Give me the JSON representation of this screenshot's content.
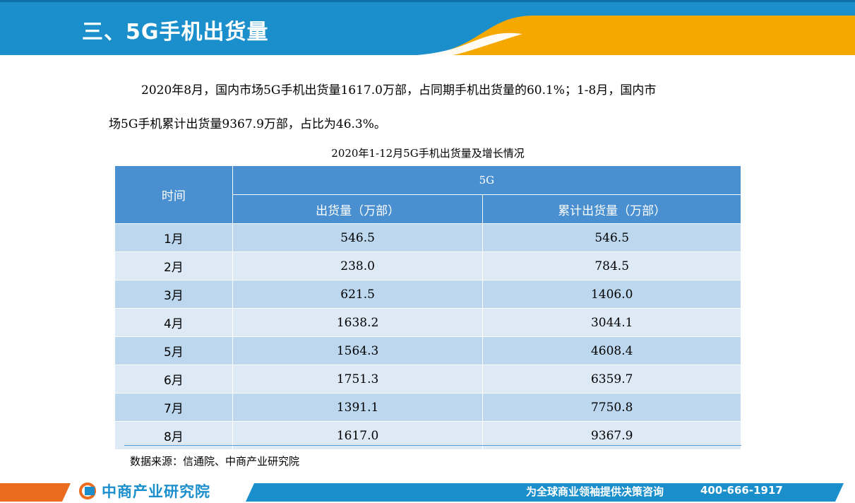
{
  "header": {
    "title": "三、5G手机出货量"
  },
  "paragraph": {
    "line1": "2020年8月，国内市场5G手机出货量1617.0万部，占同期手机出货量的60.1%；1-8月，国内市",
    "line2": "场5G手机累计出货量9367.9万部，占比为46.3%。"
  },
  "table": {
    "caption": "2020年1-12月5G手机出货量及增长情况",
    "header_time": "时间",
    "header_group": "5G",
    "header_shipments": "出货量（万部）",
    "header_cumulative": "累计出货量（万部）",
    "rows": [
      {
        "month": "1月",
        "shipments": "546.5",
        "cumulative": "546.5"
      },
      {
        "month": "2月",
        "shipments": "238.0",
        "cumulative": "784.5"
      },
      {
        "month": "3月",
        "shipments": "621.5",
        "cumulative": "1406.0"
      },
      {
        "month": "4月",
        "shipments": "1638.2",
        "cumulative": "3044.1"
      },
      {
        "month": "5月",
        "shipments": "1564.3",
        "cumulative": "4608.4"
      },
      {
        "month": "6月",
        "shipments": "1751.3",
        "cumulative": "6359.7"
      },
      {
        "month": "7月",
        "shipments": "1391.1",
        "cumulative": "7750.8"
      },
      {
        "month": "8月",
        "shipments": "1617.0",
        "cumulative": "9367.9"
      }
    ]
  },
  "source": "数据来源：信通院、中商产业研究院",
  "footer": {
    "logo_text": "中商产业研究院",
    "slogan": "为全球商业领袖提供决策咨询",
    "phone": "400-666-1917"
  },
  "colors": {
    "brand_blue": "#1a8fcc",
    "accent_orange": "#f5a800",
    "table_header": "#4a90d0",
    "row_dark": "#bcd7ee",
    "row_light": "#dde9f5"
  }
}
